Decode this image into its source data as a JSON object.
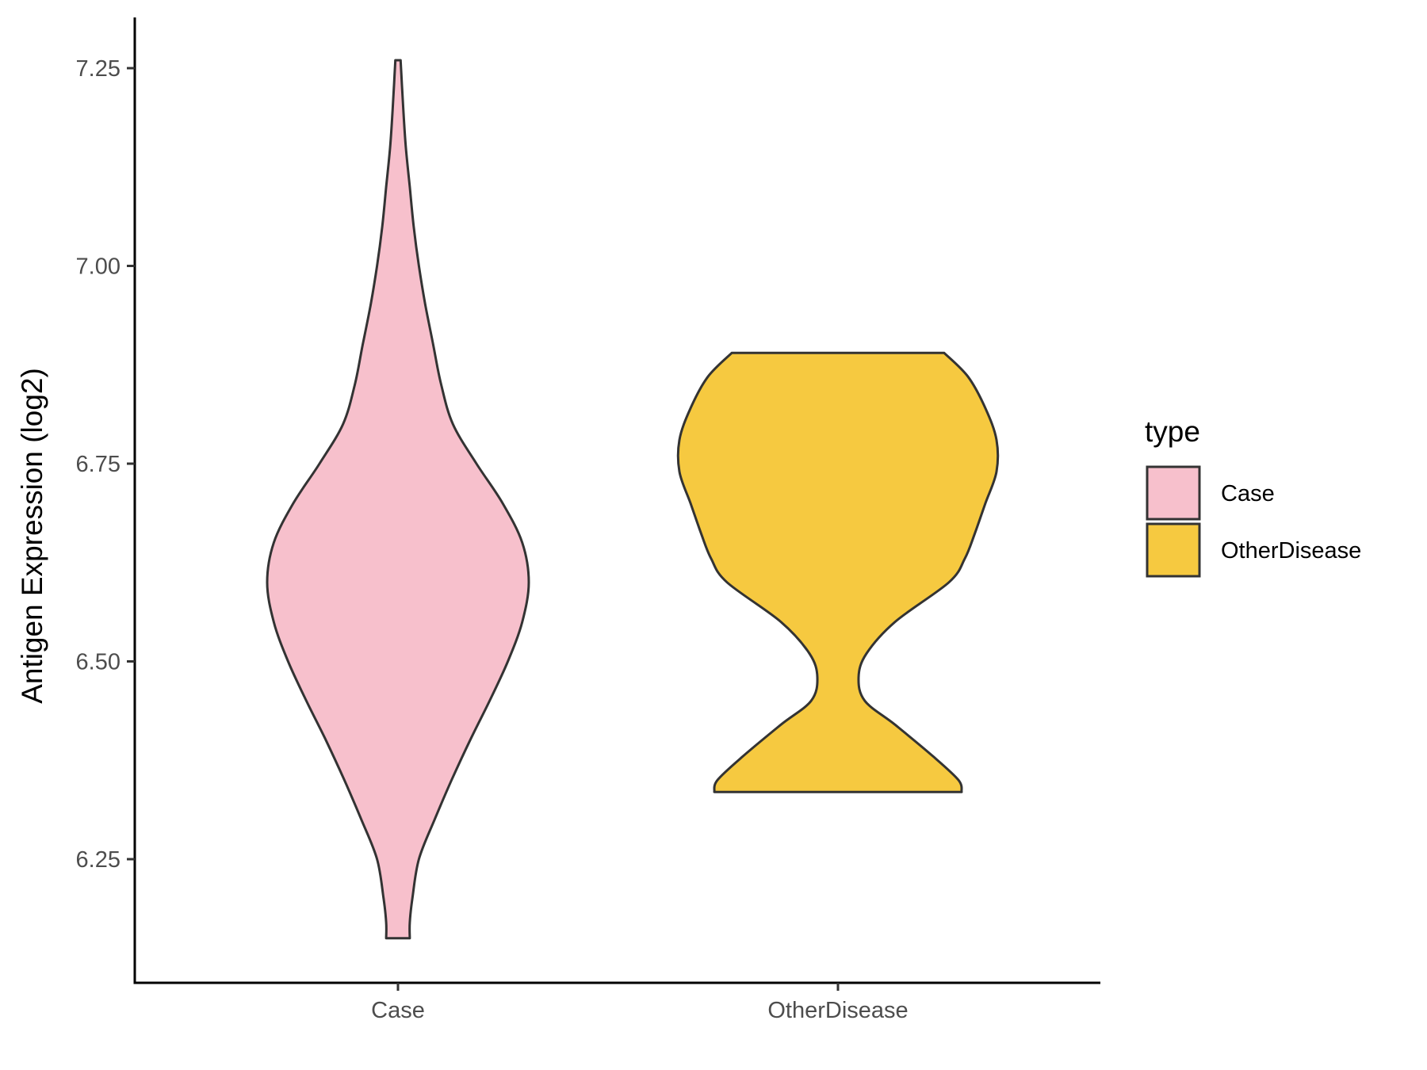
{
  "chart_data": {
    "type": "violin",
    "ylabel": "Antigen Expression (log2)",
    "xlabel": "",
    "categories": [
      "Case",
      "OtherDisease"
    ],
    "ylim": [
      6.1,
      7.32
    ],
    "yticks": [
      6.25,
      6.5,
      6.75,
      7.0,
      7.25
    ],
    "ytick_labels": [
      "6.25",
      "6.50",
      "6.75",
      "7.00",
      "7.25"
    ],
    "grid": false,
    "legend": {
      "title": "type",
      "position": "right",
      "entries": [
        "Case",
        "OtherDisease"
      ]
    },
    "series": [
      {
        "name": "Case",
        "color": "#F7C0CC",
        "y_min": 6.15,
        "y_max": 7.26,
        "density_profile": [
          [
            6.15,
            0.09
          ],
          [
            6.17,
            0.09
          ],
          [
            6.2,
            0.11
          ],
          [
            6.25,
            0.16
          ],
          [
            6.3,
            0.28
          ],
          [
            6.35,
            0.41
          ],
          [
            6.4,
            0.55
          ],
          [
            6.45,
            0.7
          ],
          [
            6.5,
            0.84
          ],
          [
            6.55,
            0.95
          ],
          [
            6.6,
            1.0
          ],
          [
            6.65,
            0.95
          ],
          [
            6.7,
            0.8
          ],
          [
            6.75,
            0.6
          ],
          [
            6.8,
            0.42
          ],
          [
            6.85,
            0.33
          ],
          [
            6.9,
            0.27
          ],
          [
            6.95,
            0.21
          ],
          [
            7.0,
            0.16
          ],
          [
            7.05,
            0.12
          ],
          [
            7.1,
            0.09
          ],
          [
            7.15,
            0.06
          ],
          [
            7.2,
            0.04
          ],
          [
            7.23,
            0.03
          ],
          [
            7.26,
            0.02
          ]
        ]
      },
      {
        "name": "OtherDisease",
        "color": "#F6C940",
        "y_min": 6.335,
        "y_max": 6.89,
        "density_profile": [
          [
            6.335,
            0.78
          ],
          [
            6.35,
            0.76
          ],
          [
            6.38,
            0.6
          ],
          [
            6.42,
            0.36
          ],
          [
            6.45,
            0.17
          ],
          [
            6.48,
            0.13
          ],
          [
            6.51,
            0.18
          ],
          [
            6.55,
            0.36
          ],
          [
            6.6,
            0.7
          ],
          [
            6.63,
            0.8
          ],
          [
            6.66,
            0.86
          ],
          [
            6.7,
            0.93
          ],
          [
            6.74,
            1.0
          ],
          [
            6.78,
            1.0
          ],
          [
            6.82,
            0.93
          ],
          [
            6.86,
            0.82
          ],
          [
            6.89,
            0.67
          ]
        ]
      }
    ]
  }
}
